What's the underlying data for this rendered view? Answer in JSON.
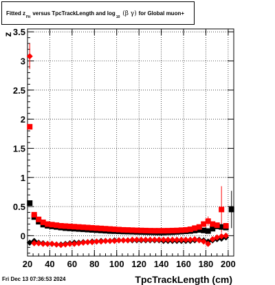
{
  "title": {
    "prefix": "Fitted  z",
    "z_sub": "Fit",
    "middle": "  versus TpcTrackLength and log",
    "log_sub": "10",
    "beta_gamma": " (β  γ) ",
    "suffix": "for Global muon+"
  },
  "footer": {
    "timestamp": "Fri Dec 13 07:36:53 2024"
  },
  "chart_data": {
    "type": "scatter",
    "title": "Fitted z_Fit versus TpcTrackLength and log_10 (β γ) for Global muon+",
    "xlabel": "TpcTrackLength (cm)",
    "ylabel": "z",
    "xlim": [
      20,
      205
    ],
    "ylim": [
      -0.35,
      3.55
    ],
    "xticks": [
      20,
      40,
      60,
      80,
      100,
      120,
      140,
      160,
      180,
      200
    ],
    "yticks": [
      0,
      0.5,
      1,
      1.5,
      2,
      2.5,
      3,
      3.5
    ],
    "ytick_labels": [
      "0",
      "0.5",
      "1",
      "1.5",
      "2",
      "2.5",
      "3",
      "3.5"
    ],
    "grid": true,
    "colors": {
      "black": "#000000",
      "red": "#ff0000"
    },
    "series": [
      {
        "marker": "square",
        "color": "#000000",
        "points": [
          [
            22,
            0.56
          ],
          [
            26,
            0.32
          ],
          [
            30,
            0.24
          ],
          [
            34,
            0.19
          ],
          [
            38,
            0.17
          ],
          [
            42,
            0.16
          ],
          [
            46,
            0.15
          ],
          [
            50,
            0.14
          ],
          [
            54,
            0.13
          ],
          [
            58,
            0.125
          ],
          [
            62,
            0.12
          ],
          [
            66,
            0.115
          ],
          [
            70,
            0.11
          ],
          [
            74,
            0.105
          ],
          [
            78,
            0.1
          ],
          [
            82,
            0.095
          ],
          [
            86,
            0.09
          ],
          [
            90,
            0.085
          ],
          [
            94,
            0.08
          ],
          [
            98,
            0.078
          ],
          [
            102,
            0.075
          ],
          [
            106,
            0.072
          ],
          [
            110,
            0.07
          ],
          [
            114,
            0.068
          ],
          [
            118,
            0.065
          ],
          [
            122,
            0.063
          ],
          [
            126,
            0.06
          ],
          [
            130,
            0.058
          ],
          [
            134,
            0.056
          ],
          [
            138,
            0.055
          ],
          [
            142,
            0.055
          ],
          [
            146,
            0.058
          ],
          [
            150,
            0.06
          ],
          [
            154,
            0.065
          ],
          [
            158,
            0.07
          ],
          [
            162,
            0.075
          ],
          [
            166,
            0.08
          ],
          [
            170,
            0.09
          ],
          [
            174,
            0.1
          ],
          [
            178,
            0.09
          ],
          [
            182,
            0.08
          ],
          [
            186,
            0.12
          ],
          [
            190,
            0.16
          ],
          [
            194,
            0.15
          ],
          [
            198,
            0.14
          ],
          [
            203,
            0.45
          ]
        ],
        "errors": [
          [
            203,
            0.32
          ],
          [
            194,
            0.05
          ]
        ]
      },
      {
        "marker": "square",
        "color": "#ff0000",
        "points": [
          [
            22,
            1.87
          ],
          [
            26,
            0.36
          ],
          [
            30,
            0.28
          ],
          [
            34,
            0.23
          ],
          [
            38,
            0.2
          ],
          [
            42,
            0.19
          ],
          [
            46,
            0.18
          ],
          [
            50,
            0.17
          ],
          [
            54,
            0.165
          ],
          [
            58,
            0.16
          ],
          [
            62,
            0.155
          ],
          [
            66,
            0.15
          ],
          [
            70,
            0.145
          ],
          [
            74,
            0.14
          ],
          [
            78,
            0.135
          ],
          [
            82,
            0.13
          ],
          [
            86,
            0.125
          ],
          [
            90,
            0.12
          ],
          [
            94,
            0.115
          ],
          [
            98,
            0.11
          ],
          [
            102,
            0.105
          ],
          [
            106,
            0.1
          ],
          [
            110,
            0.098
          ],
          [
            114,
            0.095
          ],
          [
            118,
            0.092
          ],
          [
            122,
            0.09
          ],
          [
            126,
            0.088
          ],
          [
            130,
            0.086
          ],
          [
            134,
            0.085
          ],
          [
            138,
            0.085
          ],
          [
            142,
            0.085
          ],
          [
            146,
            0.086
          ],
          [
            150,
            0.088
          ],
          [
            154,
            0.09
          ],
          [
            158,
            0.095
          ],
          [
            162,
            0.1
          ],
          [
            166,
            0.11
          ],
          [
            170,
            0.13
          ],
          [
            174,
            0.15
          ],
          [
            178,
            0.2
          ],
          [
            182,
            0.25
          ],
          [
            186,
            0.2
          ],
          [
            190,
            0.18
          ],
          [
            194,
            0.45
          ],
          [
            198,
            0.17
          ]
        ],
        "errors": [
          [
            194,
            0.4
          ],
          [
            182,
            0.08
          ]
        ]
      },
      {
        "marker": "diamond",
        "color": "#000000",
        "points": [
          [
            22,
            -0.12
          ],
          [
            26,
            -0.09
          ],
          [
            30,
            -0.12
          ],
          [
            34,
            -0.13
          ],
          [
            38,
            -0.14
          ],
          [
            42,
            -0.14
          ],
          [
            46,
            -0.15
          ],
          [
            50,
            -0.15
          ],
          [
            54,
            -0.14
          ],
          [
            58,
            -0.13
          ],
          [
            62,
            -0.12
          ],
          [
            66,
            -0.12
          ],
          [
            70,
            -0.11
          ],
          [
            74,
            -0.11
          ],
          [
            78,
            -0.1
          ],
          [
            82,
            -0.1
          ],
          [
            86,
            -0.09
          ],
          [
            90,
            -0.09
          ],
          [
            94,
            -0.09
          ],
          [
            98,
            -0.08
          ],
          [
            102,
            -0.08
          ],
          [
            106,
            -0.08
          ],
          [
            110,
            -0.08
          ],
          [
            114,
            -0.08
          ],
          [
            118,
            -0.08
          ],
          [
            122,
            -0.08
          ],
          [
            126,
            -0.08
          ],
          [
            130,
            -0.08
          ],
          [
            134,
            -0.08
          ],
          [
            138,
            -0.08
          ],
          [
            142,
            -0.09
          ],
          [
            146,
            -0.09
          ],
          [
            150,
            -0.09
          ],
          [
            154,
            -0.09
          ],
          [
            158,
            -0.09
          ],
          [
            162,
            -0.09
          ],
          [
            166,
            -0.09
          ],
          [
            170,
            -0.08
          ],
          [
            174,
            -0.07
          ],
          [
            178,
            -0.08
          ],
          [
            182,
            -0.1
          ],
          [
            186,
            -0.08
          ],
          [
            190,
            -0.06
          ],
          [
            194,
            -0.05
          ],
          [
            198,
            -0.03
          ]
        ],
        "errors": []
      },
      {
        "marker": "diamond",
        "color": "#ff0000",
        "points": [
          [
            22,
            3.08
          ],
          [
            26,
            -0.13
          ],
          [
            30,
            -0.13
          ],
          [
            34,
            -0.14
          ],
          [
            38,
            -0.14
          ],
          [
            42,
            -0.14
          ],
          [
            46,
            -0.15
          ],
          [
            50,
            -0.16
          ],
          [
            54,
            -0.15
          ],
          [
            58,
            -0.14
          ],
          [
            62,
            -0.14
          ],
          [
            66,
            -0.13
          ],
          [
            70,
            -0.12
          ],
          [
            74,
            -0.11
          ],
          [
            78,
            -0.11
          ],
          [
            82,
            -0.1
          ],
          [
            86,
            -0.1
          ],
          [
            90,
            -0.09
          ],
          [
            94,
            -0.09
          ],
          [
            98,
            -0.09
          ],
          [
            102,
            -0.08
          ],
          [
            106,
            -0.08
          ],
          [
            110,
            -0.08
          ],
          [
            114,
            -0.07
          ],
          [
            118,
            -0.07
          ],
          [
            122,
            -0.07
          ],
          [
            126,
            -0.07
          ],
          [
            130,
            -0.07
          ],
          [
            134,
            -0.07
          ],
          [
            138,
            -0.07
          ],
          [
            142,
            -0.07
          ],
          [
            146,
            -0.07
          ],
          [
            150,
            -0.07
          ],
          [
            154,
            -0.07
          ],
          [
            158,
            -0.07
          ],
          [
            162,
            -0.07
          ],
          [
            166,
            -0.07
          ],
          [
            170,
            -0.06
          ],
          [
            174,
            -0.08
          ],
          [
            178,
            -0.1
          ],
          [
            182,
            -0.14
          ],
          [
            186,
            -0.06
          ],
          [
            190,
            -0.03
          ],
          [
            194,
            -0.01
          ],
          [
            198,
            0.0
          ]
        ],
        "errors": [
          [
            22,
            0.22
          ]
        ]
      }
    ]
  }
}
